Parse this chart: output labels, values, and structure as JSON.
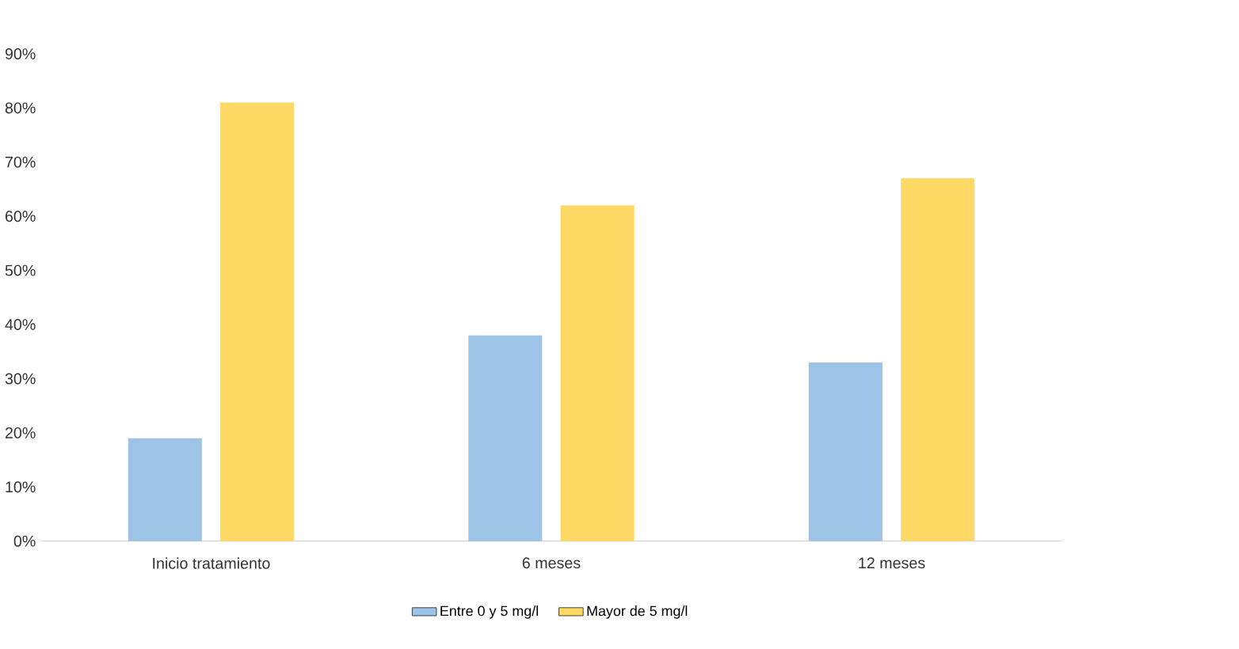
{
  "chart_data": {
    "type": "bar",
    "categories": [
      "Inicio tratamiento",
      "6 meses",
      "12 meses"
    ],
    "series": [
      {
        "name": "Entre 0 y 5 mg/l",
        "color": "#9dc3e6",
        "values": [
          19,
          38,
          33
        ]
      },
      {
        "name": "Mayor de 5 mg/l",
        "color": "#ffd966",
        "values": [
          81,
          62,
          67
        ]
      }
    ],
    "ylim": [
      0,
      90
    ],
    "yticks": [
      {
        "value": 0,
        "label": "0%"
      },
      {
        "value": 10,
        "label": "10%"
      },
      {
        "value": 20,
        "label": "20%"
      },
      {
        "value": 30,
        "label": "30%"
      },
      {
        "value": 40,
        "label": "40%"
      },
      {
        "value": 50,
        "label": "50%"
      },
      {
        "value": 60,
        "label": "60%"
      },
      {
        "value": 70,
        "label": "70%"
      },
      {
        "value": 80,
        "label": "80%"
      },
      {
        "value": 90,
        "label": "90%"
      }
    ],
    "legend": "bottom"
  }
}
